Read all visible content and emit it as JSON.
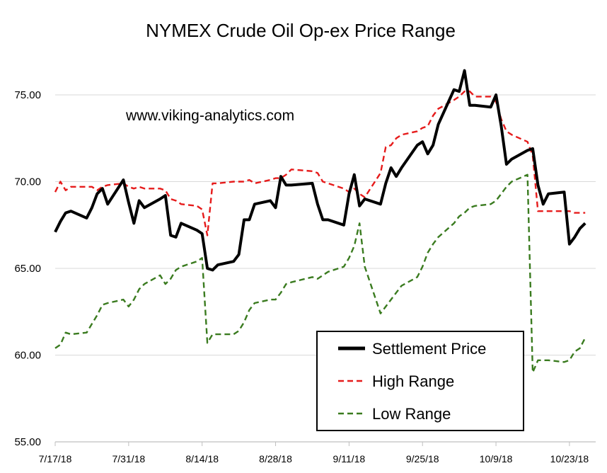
{
  "chart_data": {
    "type": "line",
    "title": "NYMEX Crude Oil Op-ex Price Range",
    "annotation": "www.viking-analytics.com",
    "xlabel": "",
    "ylabel": "",
    "ylim": [
      55,
      77
    ],
    "y_ticks": [
      "55.00",
      "60.00",
      "65.00",
      "70.00",
      "75.00"
    ],
    "x_range": [
      "2018-07-17",
      "2018-10-28"
    ],
    "x_ticks": [
      {
        "date": "2018-07-17",
        "label": "7/17/18"
      },
      {
        "date": "2018-07-31",
        "label": "7/31/18"
      },
      {
        "date": "2018-08-14",
        "label": "8/14/18"
      },
      {
        "date": "2018-08-28",
        "label": "8/28/18"
      },
      {
        "date": "2018-09-11",
        "label": "9/11/18"
      },
      {
        "date": "2018-09-25",
        "label": "9/25/18"
      },
      {
        "date": "2018-10-09",
        "label": "10/9/18"
      },
      {
        "date": "2018-10-23",
        "label": "10/23/18"
      }
    ],
    "grid": "horizontal",
    "legend_position": "bottom-right",
    "series": [
      {
        "name": "Settlement Price",
        "color": "#000000",
        "style": "solid",
        "points": [
          [
            "2018-07-17",
            67.1
          ],
          [
            "2018-07-18",
            67.7
          ],
          [
            "2018-07-19",
            68.2
          ],
          [
            "2018-07-20",
            68.3
          ],
          [
            "2018-07-23",
            67.9
          ],
          [
            "2018-07-24",
            68.5
          ],
          [
            "2018-07-25",
            69.3
          ],
          [
            "2018-07-26",
            69.6
          ],
          [
            "2018-07-27",
            68.7
          ],
          [
            "2018-07-30",
            70.1
          ],
          [
            "2018-07-31",
            68.8
          ],
          [
            "2018-08-01",
            67.6
          ],
          [
            "2018-08-02",
            68.9
          ],
          [
            "2018-08-03",
            68.5
          ],
          [
            "2018-08-06",
            69.0
          ],
          [
            "2018-08-07",
            69.2
          ],
          [
            "2018-08-08",
            66.9
          ],
          [
            "2018-08-09",
            66.8
          ],
          [
            "2018-08-10",
            67.6
          ],
          [
            "2018-08-13",
            67.2
          ],
          [
            "2018-08-14",
            67.0
          ],
          [
            "2018-08-15",
            65.0
          ],
          [
            "2018-08-16",
            64.9
          ],
          [
            "2018-08-17",
            65.2
          ],
          [
            "2018-08-20",
            65.4
          ],
          [
            "2018-08-21",
            65.8
          ],
          [
            "2018-08-22",
            67.8
          ],
          [
            "2018-08-23",
            67.8
          ],
          [
            "2018-08-24",
            68.7
          ],
          [
            "2018-08-27",
            68.9
          ],
          [
            "2018-08-28",
            68.5
          ],
          [
            "2018-08-29",
            70.3
          ],
          [
            "2018-08-30",
            69.8
          ],
          [
            "2018-08-31",
            69.8
          ],
          [
            "2018-09-04",
            69.9
          ],
          [
            "2018-09-05",
            68.7
          ],
          [
            "2018-09-06",
            67.8
          ],
          [
            "2018-09-07",
            67.8
          ],
          [
            "2018-09-10",
            67.5
          ],
          [
            "2018-09-11",
            69.3
          ],
          [
            "2018-09-12",
            70.4
          ],
          [
            "2018-09-13",
            68.6
          ],
          [
            "2018-09-14",
            69.0
          ],
          [
            "2018-09-17",
            68.7
          ],
          [
            "2018-09-18",
            69.9
          ],
          [
            "2018-09-19",
            70.8
          ],
          [
            "2018-09-20",
            70.3
          ],
          [
            "2018-09-21",
            70.8
          ],
          [
            "2018-09-24",
            72.1
          ],
          [
            "2018-09-25",
            72.3
          ],
          [
            "2018-09-26",
            71.6
          ],
          [
            "2018-09-27",
            72.1
          ],
          [
            "2018-09-28",
            73.3
          ],
          [
            "2018-10-01",
            75.3
          ],
          [
            "2018-10-02",
            75.2
          ],
          [
            "2018-10-03",
            76.4
          ],
          [
            "2018-10-04",
            74.4
          ],
          [
            "2018-10-05",
            74.4
          ],
          [
            "2018-10-08",
            74.3
          ],
          [
            "2018-10-09",
            75.0
          ],
          [
            "2018-10-10",
            73.2
          ],
          [
            "2018-10-11",
            71.0
          ],
          [
            "2018-10-12",
            71.3
          ],
          [
            "2018-10-15",
            71.8
          ],
          [
            "2018-10-16",
            71.9
          ],
          [
            "2018-10-17",
            69.8
          ],
          [
            "2018-10-18",
            68.7
          ],
          [
            "2018-10-19",
            69.3
          ],
          [
            "2018-10-22",
            69.4
          ],
          [
            "2018-10-23",
            66.4
          ],
          [
            "2018-10-24",
            66.8
          ],
          [
            "2018-10-25",
            67.3
          ],
          [
            "2018-10-26",
            67.6
          ]
        ]
      },
      {
        "name": "High Range",
        "color": "#e61b1b",
        "style": "dashed",
        "points": [
          [
            "2018-07-17",
            69.4
          ],
          [
            "2018-07-18",
            70.0
          ],
          [
            "2018-07-19",
            69.5
          ],
          [
            "2018-07-20",
            69.7
          ],
          [
            "2018-07-23",
            69.7
          ],
          [
            "2018-07-24",
            69.7
          ],
          [
            "2018-07-25",
            69.5
          ],
          [
            "2018-07-26",
            69.7
          ],
          [
            "2018-07-27",
            69.8
          ],
          [
            "2018-07-30",
            69.9
          ],
          [
            "2018-07-31",
            69.7
          ],
          [
            "2018-08-01",
            69.6
          ],
          [
            "2018-08-02",
            69.7
          ],
          [
            "2018-08-03",
            69.6
          ],
          [
            "2018-08-06",
            69.6
          ],
          [
            "2018-08-07",
            69.5
          ],
          [
            "2018-08-08",
            69.0
          ],
          [
            "2018-08-09",
            68.9
          ],
          [
            "2018-08-10",
            68.7
          ],
          [
            "2018-08-13",
            68.6
          ],
          [
            "2018-08-14",
            68.4
          ],
          [
            "2018-08-15",
            66.9
          ],
          [
            "2018-08-16",
            69.9
          ],
          [
            "2018-08-17",
            69.9
          ],
          [
            "2018-08-20",
            70.0
          ],
          [
            "2018-08-21",
            70.0
          ],
          [
            "2018-08-22",
            70.0
          ],
          [
            "2018-08-23",
            70.1
          ],
          [
            "2018-08-24",
            69.9
          ],
          [
            "2018-08-27",
            70.1
          ],
          [
            "2018-08-28",
            70.2
          ],
          [
            "2018-08-29",
            70.2
          ],
          [
            "2018-08-30",
            70.4
          ],
          [
            "2018-08-31",
            70.7
          ],
          [
            "2018-09-04",
            70.6
          ],
          [
            "2018-09-05",
            70.5
          ],
          [
            "2018-09-06",
            70.0
          ],
          [
            "2018-09-07",
            69.9
          ],
          [
            "2018-09-10",
            69.6
          ],
          [
            "2018-09-11",
            69.4
          ],
          [
            "2018-09-12",
            69.6
          ],
          [
            "2018-09-13",
            69.3
          ],
          [
            "2018-09-14",
            69.1
          ],
          [
            "2018-09-17",
            70.5
          ],
          [
            "2018-09-18",
            72.0
          ],
          [
            "2018-09-19",
            72.1
          ],
          [
            "2018-09-20",
            72.5
          ],
          [
            "2018-09-21",
            72.7
          ],
          [
            "2018-09-24",
            72.9
          ],
          [
            "2018-09-25",
            73.1
          ],
          [
            "2018-09-26",
            73.2
          ],
          [
            "2018-09-27",
            73.8
          ],
          [
            "2018-09-28",
            74.2
          ],
          [
            "2018-10-01",
            74.7
          ],
          [
            "2018-10-02",
            74.9
          ],
          [
            "2018-10-03",
            75.2
          ],
          [
            "2018-10-04",
            75.2
          ],
          [
            "2018-10-05",
            74.9
          ],
          [
            "2018-10-08",
            74.9
          ],
          [
            "2018-10-09",
            74.6
          ],
          [
            "2018-10-10",
            73.6
          ],
          [
            "2018-10-11",
            72.9
          ],
          [
            "2018-10-12",
            72.7
          ],
          [
            "2018-10-15",
            72.3
          ],
          [
            "2018-10-16",
            71.5
          ],
          [
            "2018-10-17",
            68.3
          ],
          [
            "2018-10-18",
            68.3
          ],
          [
            "2018-10-19",
            68.3
          ],
          [
            "2018-10-22",
            68.3
          ],
          [
            "2018-10-23",
            68.3
          ],
          [
            "2018-10-24",
            68.2
          ],
          [
            "2018-10-25",
            68.2
          ],
          [
            "2018-10-26",
            68.2
          ]
        ]
      },
      {
        "name": "Low Range",
        "color": "#3a7b1f",
        "style": "dashed",
        "points": [
          [
            "2018-07-17",
            60.4
          ],
          [
            "2018-07-18",
            60.6
          ],
          [
            "2018-07-19",
            61.3
          ],
          [
            "2018-07-20",
            61.2
          ],
          [
            "2018-07-23",
            61.3
          ],
          [
            "2018-07-24",
            61.8
          ],
          [
            "2018-07-25",
            62.3
          ],
          [
            "2018-07-26",
            62.9
          ],
          [
            "2018-07-27",
            63.0
          ],
          [
            "2018-07-30",
            63.2
          ],
          [
            "2018-07-31",
            62.8
          ],
          [
            "2018-08-01",
            63.2
          ],
          [
            "2018-08-02",
            63.8
          ],
          [
            "2018-08-03",
            64.1
          ],
          [
            "2018-08-06",
            64.6
          ],
          [
            "2018-08-07",
            64.1
          ],
          [
            "2018-08-08",
            64.4
          ],
          [
            "2018-08-09",
            64.9
          ],
          [
            "2018-08-10",
            65.1
          ],
          [
            "2018-08-13",
            65.4
          ],
          [
            "2018-08-14",
            65.6
          ],
          [
            "2018-08-15",
            60.7
          ],
          [
            "2018-08-16",
            61.2
          ],
          [
            "2018-08-17",
            61.2
          ],
          [
            "2018-08-20",
            61.2
          ],
          [
            "2018-08-21",
            61.4
          ],
          [
            "2018-08-22",
            61.9
          ],
          [
            "2018-08-23",
            62.6
          ],
          [
            "2018-08-24",
            63.0
          ],
          [
            "2018-08-27",
            63.2
          ],
          [
            "2018-08-28",
            63.2
          ],
          [
            "2018-08-29",
            63.6
          ],
          [
            "2018-08-30",
            64.1
          ],
          [
            "2018-08-31",
            64.2
          ],
          [
            "2018-09-04",
            64.5
          ],
          [
            "2018-09-05",
            64.4
          ],
          [
            "2018-09-06",
            64.6
          ],
          [
            "2018-09-07",
            64.8
          ],
          [
            "2018-09-10",
            65.1
          ],
          [
            "2018-09-11",
            65.6
          ],
          [
            "2018-09-12",
            66.3
          ],
          [
            "2018-09-13",
            67.6
          ],
          [
            "2018-09-14",
            65.1
          ],
          [
            "2018-09-17",
            62.4
          ],
          [
            "2018-09-18",
            62.8
          ],
          [
            "2018-09-19",
            63.2
          ],
          [
            "2018-09-20",
            63.6
          ],
          [
            "2018-09-21",
            64.0
          ],
          [
            "2018-09-24",
            64.5
          ],
          [
            "2018-09-25",
            65.1
          ],
          [
            "2018-09-26",
            65.9
          ],
          [
            "2018-09-27",
            66.4
          ],
          [
            "2018-09-28",
            66.8
          ],
          [
            "2018-10-01",
            67.6
          ],
          [
            "2018-10-02",
            68.0
          ],
          [
            "2018-10-03",
            68.2
          ],
          [
            "2018-10-04",
            68.5
          ],
          [
            "2018-10-05",
            68.6
          ],
          [
            "2018-10-08",
            68.7
          ],
          [
            "2018-10-09",
            68.9
          ],
          [
            "2018-10-10",
            69.3
          ],
          [
            "2018-10-11",
            69.7
          ],
          [
            "2018-10-12",
            70.0
          ],
          [
            "2018-10-15",
            70.4
          ],
          [
            "2018-10-16",
            59.0
          ],
          [
            "2018-10-17",
            59.7
          ],
          [
            "2018-10-18",
            59.7
          ],
          [
            "2018-10-19",
            59.7
          ],
          [
            "2018-10-22",
            59.6
          ],
          [
            "2018-10-23",
            59.7
          ],
          [
            "2018-10-24",
            60.2
          ],
          [
            "2018-10-25",
            60.4
          ],
          [
            "2018-10-26",
            61.0
          ]
        ]
      }
    ]
  }
}
